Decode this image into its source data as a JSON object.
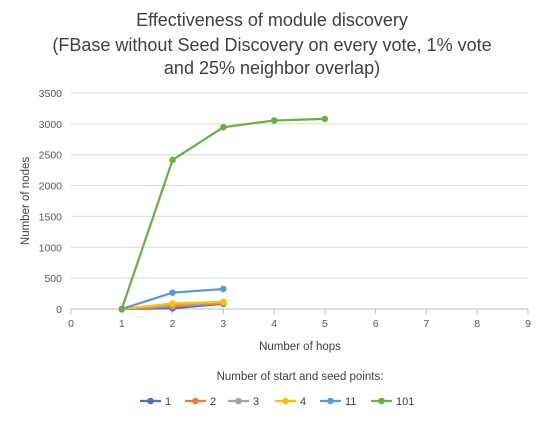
{
  "chart_data": {
    "type": "line",
    "title_lines": [
      "Effectiveness of module discovery",
      "(FBase without Seed Discovery on every vote, 1% vote",
      "and 25% neighbor overlap)"
    ],
    "xlabel": "Number of hops",
    "ylabel": "Number of nodes",
    "xlim": [
      0,
      9
    ],
    "ylim": [
      0,
      3500
    ],
    "x_ticks": [
      "0",
      "1",
      "2",
      "3",
      "4",
      "5",
      "6",
      "7",
      "8",
      "9"
    ],
    "y_ticks": [
      "0",
      "500",
      "1000",
      "1500",
      "2000",
      "2500",
      "3000",
      "3500"
    ],
    "grid": "horizontal",
    "legend_title": "Number of start and seed points:",
    "legend_position": "bottom",
    "series": [
      {
        "name": "1",
        "color": "#4472C4",
        "x": [
          1,
          2,
          3
        ],
        "y": [
          0,
          12,
          85
        ]
      },
      {
        "name": "2",
        "color": "#ED7D31",
        "x": [
          1,
          2,
          3
        ],
        "y": [
          0,
          40,
          95
        ]
      },
      {
        "name": "3",
        "color": "#A5A5A5",
        "x": [
          1,
          2,
          3
        ],
        "y": [
          0,
          62,
          105
        ]
      },
      {
        "name": "4",
        "color": "#FFC000",
        "x": [
          1,
          2,
          3
        ],
        "y": [
          0,
          90,
          115
        ]
      },
      {
        "name": "11",
        "color": "#5B9BD5",
        "x": [
          1,
          2,
          3
        ],
        "y": [
          0,
          265,
          325
        ]
      },
      {
        "name": "101",
        "color": "#70AD47",
        "x": [
          1,
          2,
          3,
          4,
          5
        ],
        "y": [
          0,
          2415,
          2945,
          3055,
          3080
        ]
      }
    ]
  }
}
